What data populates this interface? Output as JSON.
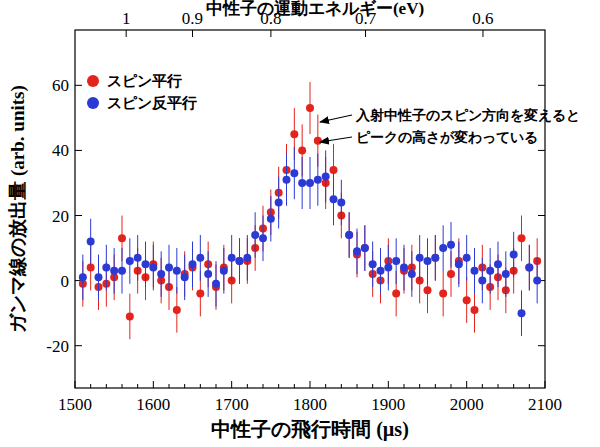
{
  "chart_data": {
    "type": "scatter",
    "xlabel": "中性子の飛行時間 (µs)",
    "ylabel": "ガンマ線の放出量 (arb. units)",
    "x2label": "中性子の運動エネルギー(eV)",
    "annotation": [
      "入射中性子のスピン方向を変えると",
      "ピークの高さが変わっている"
    ],
    "xlim": [
      1500,
      2100
    ],
    "xticks": [
      1500,
      1600,
      1700,
      1800,
      1900,
      2000,
      2100
    ],
    "ylim": [
      -33,
      77
    ],
    "yticks": [
      -20,
      0,
      20,
      40,
      60
    ],
    "x2lim": [
      1.089,
      0.5556
    ],
    "x2ticks": [
      1,
      0.9,
      0.8,
      0.7,
      0.6
    ],
    "legend": "upper-left",
    "grid": false,
    "x": [
      1510,
      1520,
      1530,
      1540,
      1550,
      1560,
      1570,
      1580,
      1590,
      1600,
      1610,
      1620,
      1630,
      1640,
      1650,
      1660,
      1670,
      1680,
      1690,
      1700,
      1710,
      1720,
      1730,
      1740,
      1750,
      1760,
      1770,
      1780,
      1790,
      1800,
      1810,
      1820,
      1830,
      1840,
      1850,
      1860,
      1870,
      1880,
      1890,
      1900,
      1910,
      1920,
      1930,
      1940,
      1950,
      1960,
      1970,
      1980,
      1990,
      2000,
      2010,
      2020,
      2030,
      2040,
      2050,
      2060,
      2070,
      2080,
      2090
    ],
    "series": [
      {
        "name": "スピン平行",
        "color": "#e3241c",
        "marker": "circle",
        "values": [
          -1,
          4,
          -2,
          -1,
          1,
          13,
          -11,
          3,
          1,
          5,
          0,
          -2,
          -9,
          2,
          4,
          -4,
          5,
          -2,
          4,
          0,
          6,
          6,
          10,
          16,
          21,
          27,
          34,
          45,
          40,
          53,
          43,
          30,
          34,
          20,
          14,
          8,
          10,
          2,
          0,
          6,
          -4,
          3,
          4,
          0,
          -3,
          7,
          -4,
          2,
          6,
          -6,
          -9,
          4,
          -2,
          1,
          -3,
          3,
          13,
          4,
          6
        ],
        "errors": [
          7,
          7,
          7,
          7,
          7,
          7,
          7,
          7,
          7,
          7,
          7,
          7,
          7,
          7,
          7,
          7,
          7,
          7,
          7,
          7,
          7,
          7,
          7,
          7,
          7,
          8,
          8,
          8,
          8,
          8,
          8,
          8,
          8,
          7,
          7,
          7,
          7,
          7,
          7,
          7,
          7,
          7,
          7,
          7,
          7,
          7,
          7,
          7,
          7,
          7,
          7,
          7,
          7,
          7,
          7,
          7,
          7,
          7,
          7
        ]
      },
      {
        "name": "スピン反平行",
        "color": "#2b3ad4",
        "marker": "circle",
        "values": [
          1,
          12,
          1,
          4,
          3,
          3,
          6,
          7,
          5,
          4,
          2,
          4,
          3,
          1,
          5,
          7,
          2,
          -1,
          3,
          7,
          6,
          7,
          14,
          13,
          19,
          24,
          31,
          33,
          30,
          30,
          31,
          32,
          25,
          24,
          14,
          9,
          10,
          5,
          3,
          4,
          6,
          4,
          2,
          7,
          6,
          7,
          10,
          11,
          5,
          7,
          3,
          0,
          3,
          5,
          2,
          8,
          -10,
          4,
          0
        ],
        "errors": [
          7,
          7,
          7,
          7,
          7,
          7,
          7,
          7,
          7,
          7,
          7,
          7,
          7,
          7,
          7,
          7,
          7,
          7,
          7,
          7,
          7,
          7,
          7,
          7,
          7,
          8,
          8,
          8,
          8,
          8,
          8,
          8,
          8,
          7,
          7,
          7,
          7,
          7,
          7,
          7,
          7,
          7,
          7,
          7,
          7,
          7,
          7,
          7,
          7,
          7,
          7,
          7,
          7,
          7,
          7,
          7,
          7,
          7,
          7
        ]
      }
    ]
  }
}
